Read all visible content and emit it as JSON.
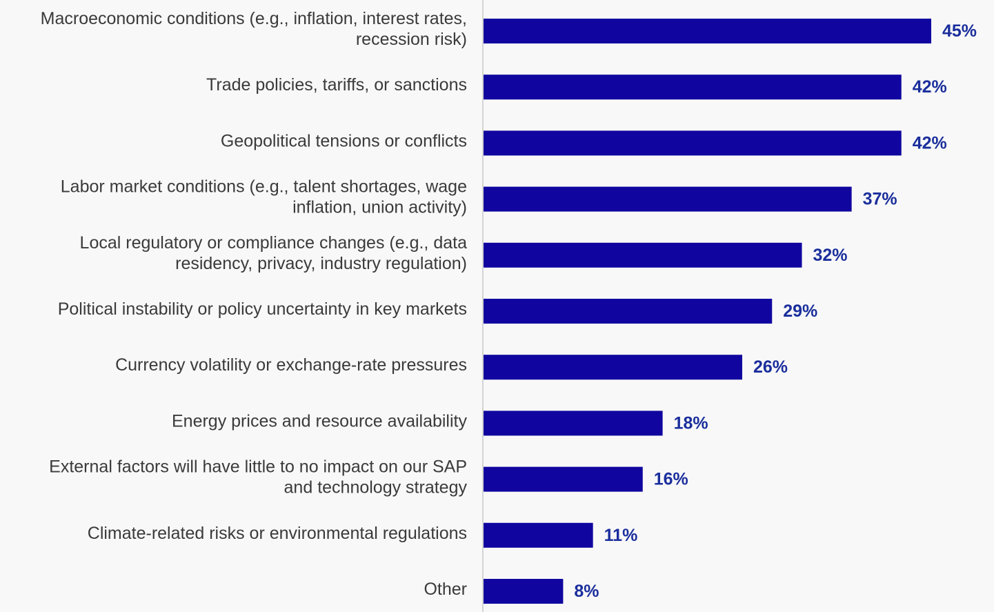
{
  "chart_data": {
    "type": "bar",
    "orientation": "horizontal",
    "categories": [
      [
        "Macroeconomic conditions (e.g., inflation, interest rates,",
        "recession risk)"
      ],
      [
        "Trade policies, tariffs, or sanctions"
      ],
      [
        "Geopolitical tensions or conflicts"
      ],
      [
        "Labor market conditions (e.g., talent shortages, wage",
        "inflation, union activity)"
      ],
      [
        "Local regulatory or compliance changes (e.g., data",
        "residency, privacy, industry regulation)"
      ],
      [
        "Political instability or policy uncertainty in key markets"
      ],
      [
        "Currency volatility or exchange-rate pressures"
      ],
      [
        "Energy prices and resource availability"
      ],
      [
        "External factors will have little to no impact on our SAP",
        "and technology strategy"
      ],
      [
        "Climate-related risks or environmental regulations"
      ],
      [
        "Other"
      ]
    ],
    "values": [
      45,
      42,
      42,
      37,
      32,
      29,
      26,
      18,
      16,
      11,
      8
    ],
    "value_labels": [
      "45%",
      "42%",
      "42%",
      "37%",
      "32%",
      "29%",
      "26%",
      "18%",
      "16%",
      "11%",
      "8%"
    ],
    "xlim": [
      0,
      50
    ],
    "grid": false,
    "legend": "none",
    "colors": {
      "bar": "#10069f",
      "value_label": "#1a2e9c",
      "category_label": "#3a3a3a",
      "axis": "#d4d4d4",
      "background": "#f8f8f8"
    }
  }
}
